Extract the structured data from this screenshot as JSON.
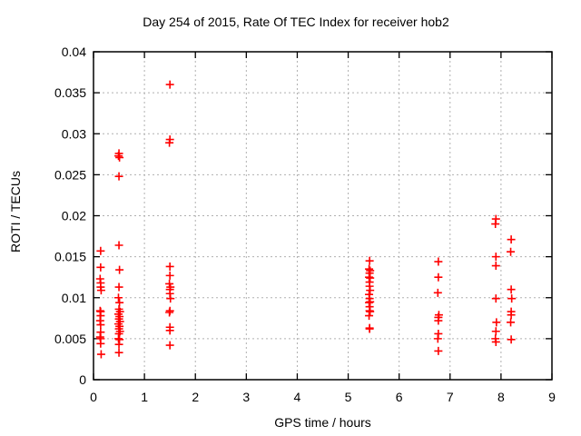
{
  "chart_data": {
    "type": "scatter",
    "title": "Day 254 of 2015, Rate Of TEC Index for receiver hob2",
    "xlabel": "GPS time / hours",
    "ylabel": "ROTI / TECUs",
    "xlim": [
      0,
      9
    ],
    "ylim": [
      0,
      0.04
    ],
    "xticks": [
      0,
      1,
      2,
      3,
      4,
      5,
      6,
      7,
      8,
      9
    ],
    "yticks": [
      0,
      0.005,
      0.01,
      0.015,
      0.02,
      0.025,
      0.03,
      0.035,
      0.04
    ],
    "grid": true,
    "legend": "none",
    "marker": "plus",
    "marker_color": "#ff0000",
    "grid_color": "#b0b0b0",
    "border_color": "#000000",
    "points": [
      [
        0.14,
        0.0157
      ],
      [
        0.14,
        0.0137
      ],
      [
        0.13,
        0.0123
      ],
      [
        0.14,
        0.0118
      ],
      [
        0.14,
        0.0113
      ],
      [
        0.15,
        0.0109
      ],
      [
        0.13,
        0.0084
      ],
      [
        0.14,
        0.0083
      ],
      [
        0.14,
        0.0078
      ],
      [
        0.13,
        0.0072
      ],
      [
        0.14,
        0.0067
      ],
      [
        0.14,
        0.0058
      ],
      [
        0.13,
        0.0052
      ],
      [
        0.14,
        0.005
      ],
      [
        0.14,
        0.0044
      ],
      [
        0.15,
        0.0031
      ],
      [
        0.5,
        0.0276
      ],
      [
        0.49,
        0.0273
      ],
      [
        0.51,
        0.0271
      ],
      [
        0.5,
        0.0248
      ],
      [
        0.5,
        0.0164
      ],
      [
        0.51,
        0.0134
      ],
      [
        0.5,
        0.0113
      ],
      [
        0.49,
        0.01
      ],
      [
        0.51,
        0.0094
      ],
      [
        0.5,
        0.0086
      ],
      [
        0.52,
        0.0083
      ],
      [
        0.49,
        0.008
      ],
      [
        0.51,
        0.0077
      ],
      [
        0.5,
        0.0074
      ],
      [
        0.52,
        0.0071
      ],
      [
        0.49,
        0.0068
      ],
      [
        0.51,
        0.0065
      ],
      [
        0.5,
        0.0062
      ],
      [
        0.52,
        0.0059
      ],
      [
        0.5,
        0.0056
      ],
      [
        0.49,
        0.005
      ],
      [
        0.51,
        0.0049
      ],
      [
        0.5,
        0.0043
      ],
      [
        0.5,
        0.0033
      ],
      [
        1.5,
        0.036
      ],
      [
        1.5,
        0.0293
      ],
      [
        1.49,
        0.0289
      ],
      [
        1.5,
        0.0138
      ],
      [
        1.5,
        0.0127
      ],
      [
        1.49,
        0.0117
      ],
      [
        1.51,
        0.0113
      ],
      [
        1.5,
        0.011
      ],
      [
        1.5,
        0.0105
      ],
      [
        1.51,
        0.0099
      ],
      [
        1.5,
        0.0084
      ],
      [
        1.49,
        0.0082
      ],
      [
        1.5,
        0.0064
      ],
      [
        1.5,
        0.006
      ],
      [
        1.5,
        0.0042
      ],
      [
        5.42,
        0.0145
      ],
      [
        5.41,
        0.0135
      ],
      [
        5.43,
        0.0133
      ],
      [
        5.42,
        0.013
      ],
      [
        5.41,
        0.0125
      ],
      [
        5.43,
        0.0124
      ],
      [
        5.42,
        0.0119
      ],
      [
        5.42,
        0.0114
      ],
      [
        5.43,
        0.0109
      ],
      [
        5.41,
        0.0104
      ],
      [
        5.42,
        0.0099
      ],
      [
        5.43,
        0.0095
      ],
      [
        5.41,
        0.0094
      ],
      [
        5.42,
        0.0089
      ],
      [
        5.42,
        0.0084
      ],
      [
        5.43,
        0.0083
      ],
      [
        5.41,
        0.0078
      ],
      [
        5.42,
        0.0063
      ],
      [
        5.42,
        0.0062
      ],
      [
        6.77,
        0.0144
      ],
      [
        6.77,
        0.0125
      ],
      [
        6.76,
        0.0106
      ],
      [
        6.78,
        0.0079
      ],
      [
        6.77,
        0.0076
      ],
      [
        6.77,
        0.0072
      ],
      [
        6.77,
        0.0056
      ],
      [
        6.76,
        0.005
      ],
      [
        6.77,
        0.0035
      ],
      [
        7.9,
        0.0196
      ],
      [
        7.89,
        0.019
      ],
      [
        7.9,
        0.015
      ],
      [
        7.9,
        0.0139
      ],
      [
        7.9,
        0.0099
      ],
      [
        7.91,
        0.007
      ],
      [
        7.9,
        0.0059
      ],
      [
        7.89,
        0.005
      ],
      [
        7.9,
        0.0046
      ],
      [
        8.2,
        0.0171
      ],
      [
        8.19,
        0.0156
      ],
      [
        8.2,
        0.011
      ],
      [
        8.21,
        0.0099
      ],
      [
        8.2,
        0.0083
      ],
      [
        8.2,
        0.0079
      ],
      [
        8.19,
        0.007
      ],
      [
        8.2,
        0.0049
      ]
    ]
  }
}
